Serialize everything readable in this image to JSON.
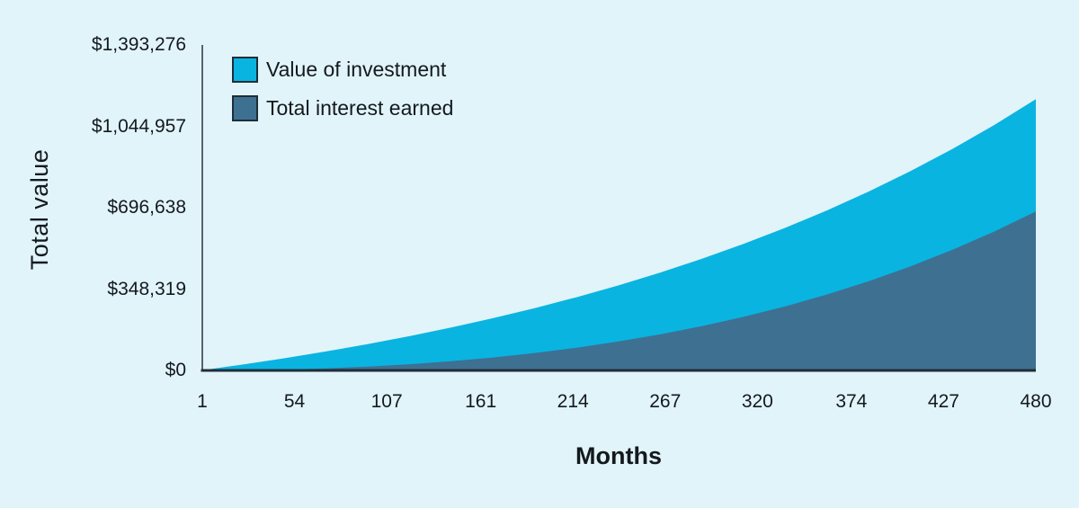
{
  "chart_data": {
    "type": "area",
    "xlabel": "Months",
    "ylabel": "Total value",
    "xlim": [
      1,
      480
    ],
    "ylim": [
      0,
      1393276
    ],
    "grid": false,
    "legend_position": "top-left",
    "x_ticks": [
      1,
      54,
      107,
      161,
      214,
      267,
      320,
      374,
      427,
      480
    ],
    "y_ticks": [
      {
        "label": "$0",
        "value": 0
      },
      {
        "label": "$348,319",
        "value": 348319
      },
      {
        "label": "$696,638",
        "value": 696638
      },
      {
        "label": "$1,044,957",
        "value": 1044957
      },
      {
        "label": "$1,393,276",
        "value": 1393276
      }
    ],
    "series": [
      {
        "name": "Value of investment",
        "color": "#0ab4e1",
        "points": [
          {
            "m": 1,
            "v": 1000
          },
          {
            "m": 24,
            "v": 24925
          },
          {
            "m": 48,
            "v": 51885
          },
          {
            "m": 72,
            "v": 81043
          },
          {
            "m": 96,
            "v": 112582
          },
          {
            "m": 120,
            "v": 146695
          },
          {
            "m": 144,
            "v": 183591
          },
          {
            "m": 168,
            "v": 223494
          },
          {
            "m": 192,
            "v": 266653
          },
          {
            "m": 216,
            "v": 313335
          },
          {
            "m": 240,
            "v": 363825
          },
          {
            "m": 264,
            "v": 418443
          },
          {
            "m": 288,
            "v": 477513
          },
          {
            "m": 312,
            "v": 541405
          },
          {
            "m": 336,
            "v": 610509
          },
          {
            "m": 360,
            "v": 685249
          },
          {
            "m": 384,
            "v": 766089
          },
          {
            "m": 408,
            "v": 853526
          },
          {
            "m": 432,
            "v": 948104
          },
          {
            "m": 456,
            "v": 1050393
          },
          {
            "m": 480,
            "v": 1161030
          }
        ]
      },
      {
        "name": "Total interest earned",
        "color": "#3e7092",
        "points": [
          {
            "m": 1,
            "v": 0
          },
          {
            "m": 24,
            "v": 925
          },
          {
            "m": 48,
            "v": 3885
          },
          {
            "m": 72,
            "v": 9043
          },
          {
            "m": 96,
            "v": 16582
          },
          {
            "m": 120,
            "v": 26695
          },
          {
            "m": 144,
            "v": 39591
          },
          {
            "m": 168,
            "v": 55494
          },
          {
            "m": 192,
            "v": 74653
          },
          {
            "m": 216,
            "v": 97335
          },
          {
            "m": 240,
            "v": 123825
          },
          {
            "m": 264,
            "v": 154443
          },
          {
            "m": 288,
            "v": 189513
          },
          {
            "m": 312,
            "v": 229405
          },
          {
            "m": 336,
            "v": 274509
          },
          {
            "m": 360,
            "v": 325249
          },
          {
            "m": 384,
            "v": 382089
          },
          {
            "m": 408,
            "v": 445526
          },
          {
            "m": 432,
            "v": 516104
          },
          {
            "m": 456,
            "v": 594393
          },
          {
            "m": 480,
            "v": 681030
          }
        ]
      }
    ]
  },
  "colors": {
    "background": "#e1f4f9",
    "text": "#14191e",
    "x_axis": "#222e38",
    "y_axis": "#5a646b",
    "swatch_border": "#1e2d38"
  }
}
